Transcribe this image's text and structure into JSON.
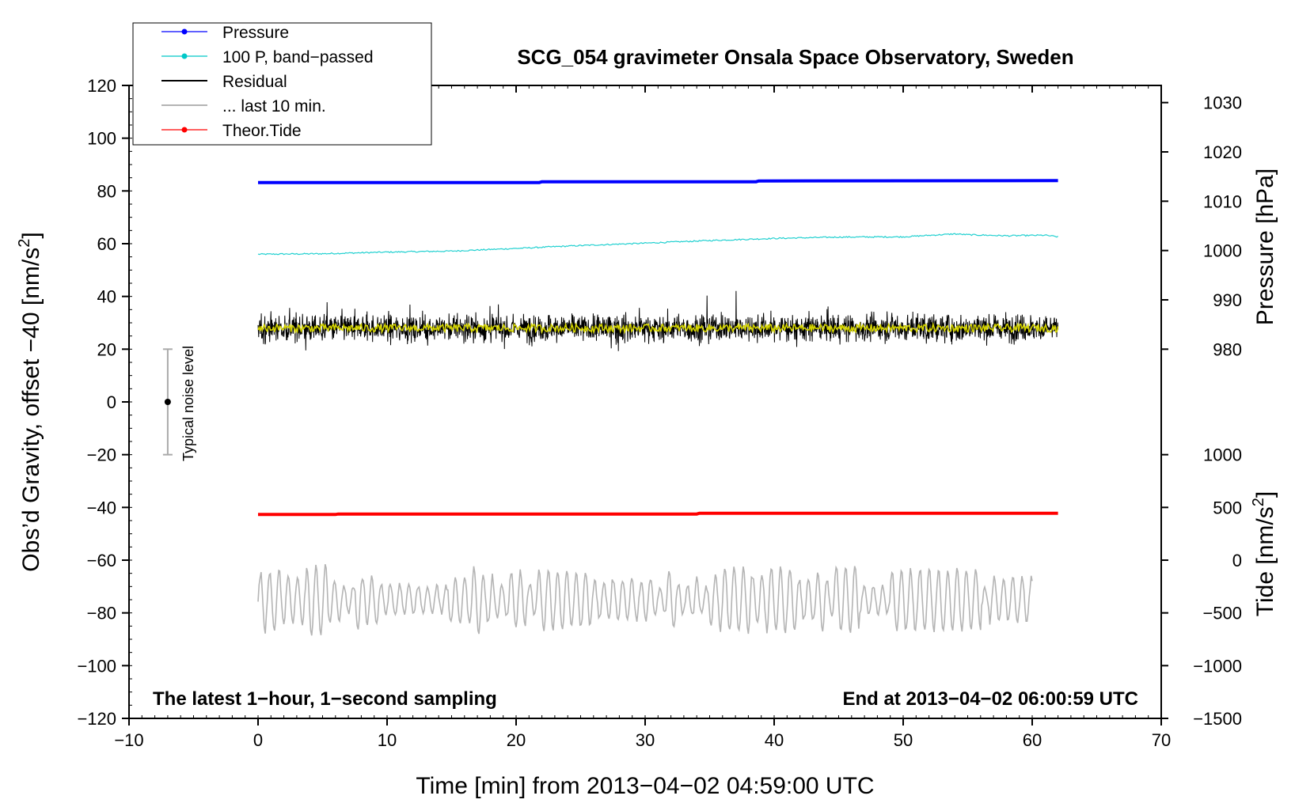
{
  "chart_data": {
    "type": "line",
    "title": "SCG_054 gravimeter Onsala Space Observatory, Sweden",
    "xlabel": "Time [min] from 2013−04−02 04:59:00 UTC",
    "ylabel_left": "Obs’d Gravity, offset −40 [nm/s²]",
    "ylabel_left_main": "Obs’d Gravity, offset −40 [nm/s",
    "ylabel_left_sup": "2",
    "ylabel_left_end": "]",
    "ylabel_right_pressure": "Pressure [hPa]",
    "ylabel_right_tide": "Tide [nm/s²]",
    "ylabel_right_tide_main": "Tide [nm/s",
    "ylabel_right_tide_sup": "2",
    "ylabel_right_tide_end": "]",
    "xlim": [
      -10,
      70
    ],
    "ylim": [
      -120,
      120
    ],
    "x_ticks": [
      -10,
      0,
      10,
      20,
      30,
      40,
      50,
      60,
      70
    ],
    "x_tick_labels": [
      "−10",
      "0",
      "10",
      "20",
      "30",
      "40",
      "50",
      "60",
      "70"
    ],
    "y_ticks": [
      120,
      100,
      80,
      60,
      40,
      20,
      0,
      -20,
      -40,
      -60,
      -80,
      -100,
      -120
    ],
    "y_tick_labels": [
      "120",
      "100",
      "80",
      "60",
      "40",
      "20",
      "0",
      "−20",
      "−40",
      "−60",
      "−80",
      "−100",
      "−120"
    ],
    "pressure_axis": {
      "ticks": [
        1030,
        1020,
        1010,
        1000,
        990,
        980
      ],
      "tick_labels": [
        "1030",
        "1020",
        "1010",
        "1000",
        "990",
        "980"
      ],
      "left_value_at": [
        [
          980,
          20
        ],
        [
          1030,
          113.5
        ]
      ]
    },
    "tide_axis": {
      "ticks": [
        1000,
        500,
        0,
        -500,
        -1000,
        -1500
      ],
      "tick_labels": [
        "1000",
        "500",
        "0",
        "−500",
        "−1000",
        "−1500"
      ],
      "left_value_at": [
        [
          1000,
          -20
        ],
        [
          -1500,
          -120
        ]
      ]
    },
    "legend": [
      {
        "label": "Pressure",
        "color": "#0000ff",
        "marker": true
      },
      {
        "label": "100 P, band−passed",
        "color": "#00c8c8",
        "marker": true
      },
      {
        "label": "Residual",
        "color": "#000000",
        "marker": false
      },
      {
        "label": "... last 10 min.",
        "color": "#b4b4b4",
        "marker": false
      },
      {
        "label": "Theor.Tide",
        "color": "#ff0000",
        "marker": true
      }
    ],
    "series": [
      {
        "name": "Pressure",
        "color": "#0000ff",
        "x": [
          0,
          21.8,
          22,
          38.6,
          38.8,
          62
        ],
        "y": [
          83.2,
          83.2,
          83.5,
          83.5,
          83.8,
          83.9
        ]
      },
      {
        "name": "100 P, band−passed",
        "color": "#20d0d0",
        "x": [
          0,
          5,
          10,
          15,
          20,
          25,
          30,
          35,
          40,
          45,
          50,
          54,
          55,
          58,
          61,
          62
        ],
        "y": [
          56,
          56.2,
          56.8,
          57.2,
          58.2,
          59.3,
          60.2,
          61.2,
          62.0,
          62.5,
          62.6,
          63.7,
          63.4,
          63.0,
          63.2,
          62.6
        ]
      },
      {
        "name": "Residual",
        "color": "#000000",
        "x_range": [
          0,
          62
        ],
        "center": 28,
        "amplitude_typical": 9,
        "amplitude_max": 23
      },
      {
        "name": "Residual (smoothed)",
        "color": "#d4d400",
        "x_range": [
          0,
          62
        ],
        "center": 28,
        "amplitude": 1.5
      },
      {
        "name": "... last 10 min.",
        "color": "#b4b4b4",
        "x_range": [
          0,
          60
        ],
        "center": -75,
        "min": -93,
        "max": -55
      },
      {
        "name": "Theor.Tide",
        "color": "#ff0000",
        "x": [
          0,
          6,
          6.2,
          34,
          34.2,
          62
        ],
        "y": [
          -42.7,
          -42.7,
          -42.5,
          -42.5,
          -42.2,
          -42.2
        ]
      }
    ],
    "noise_bar": {
      "label": "Typical noise level",
      "x": -7,
      "center": 0,
      "low": -20,
      "high": 20
    },
    "annotations": {
      "bottom_left": "The latest 1−hour, 1−second sampling",
      "bottom_right": "End at 2013−04−02 06:00:59 UTC"
    }
  }
}
